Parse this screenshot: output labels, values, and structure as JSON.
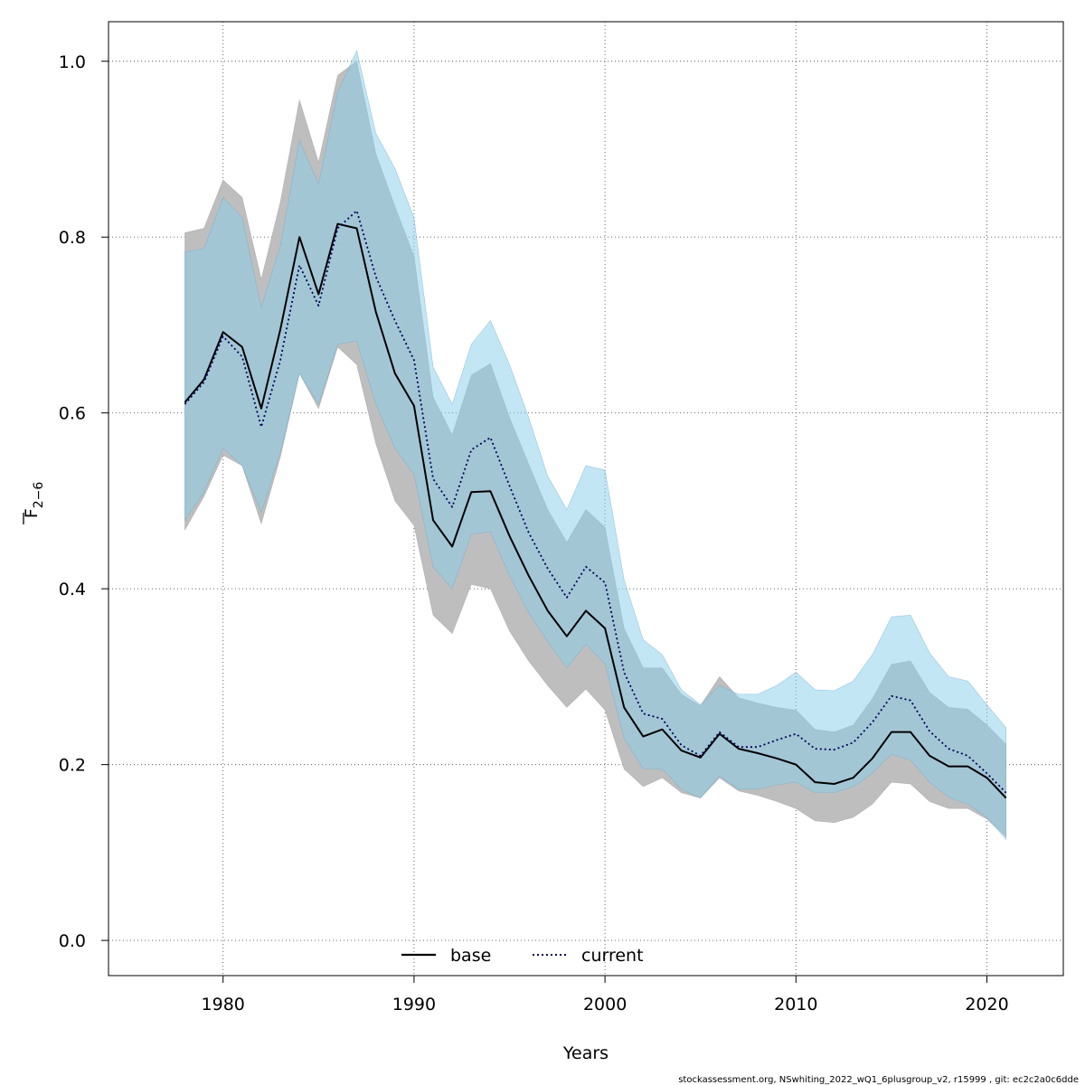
{
  "chart_data": {
    "type": "line",
    "xlabel": "Years",
    "ylabel_main": "F",
    "ylabel_sub": "2−6",
    "xlim": [
      1974,
      2024
    ],
    "ylim": [
      -0.04,
      1.045
    ],
    "xticks": [
      1980,
      1990,
      2000,
      2010,
      2020
    ],
    "yticks": [
      0.0,
      0.2,
      0.4,
      0.6,
      0.8,
      1.0
    ],
    "yticks_text": [
      "0.0",
      "0.2",
      "0.4",
      "0.6",
      "0.8",
      "1.0"
    ],
    "xticks_text": [
      "1980",
      "1990",
      "2000",
      "2010",
      "2020"
    ],
    "grid": true,
    "legend_position": "bottom-center",
    "footer": "stockassessment.org, NSwhiting_2022_wQ1_6plusgroup_v2, r15999 , git: ec2c2a0c6dde",
    "x": [
      1978,
      1979,
      1980,
      1981,
      1982,
      1983,
      1984,
      1985,
      1986,
      1987,
      1988,
      1989,
      1990,
      1991,
      1992,
      1993,
      1994,
      1995,
      1996,
      1997,
      1998,
      1999,
      2000,
      2001,
      2002,
      2003,
      2004,
      2005,
      2006,
      2007,
      2008,
      2009,
      2010,
      2011,
      2012,
      2013,
      2014,
      2015,
      2016,
      2017,
      2018,
      2019,
      2020,
      2021
    ],
    "series": [
      {
        "name": "base",
        "line_color": "#000000",
        "band_color": "#bebebe",
        "dash": "solid",
        "values": [
          0.612,
          0.638,
          0.692,
          0.675,
          0.605,
          0.695,
          0.8,
          0.735,
          0.815,
          0.81,
          0.715,
          0.645,
          0.608,
          0.478,
          0.448,
          0.51,
          0.511,
          0.46,
          0.415,
          0.375,
          0.346,
          0.375,
          0.355,
          0.265,
          0.232,
          0.24,
          0.216,
          0.208,
          0.235,
          0.218,
          0.213,
          0.207,
          0.2,
          0.18,
          0.178,
          0.185,
          0.207,
          0.237,
          0.237,
          0.21,
          0.198,
          0.198,
          0.185,
          0.162
        ],
        "lower": [
          0.467,
          0.505,
          0.552,
          0.54,
          0.474,
          0.55,
          0.645,
          0.605,
          0.675,
          0.655,
          0.565,
          0.5,
          0.472,
          0.37,
          0.349,
          0.405,
          0.4,
          0.352,
          0.318,
          0.29,
          0.265,
          0.286,
          0.262,
          0.195,
          0.175,
          0.185,
          0.168,
          0.162,
          0.185,
          0.17,
          0.165,
          0.158,
          0.15,
          0.136,
          0.134,
          0.14,
          0.155,
          0.18,
          0.178,
          0.158,
          0.15,
          0.15,
          0.138,
          0.118
        ],
        "upper": [
          0.805,
          0.81,
          0.865,
          0.845,
          0.752,
          0.84,
          0.956,
          0.885,
          0.984,
          1.0,
          0.895,
          0.835,
          0.778,
          0.618,
          0.575,
          0.643,
          0.656,
          0.595,
          0.542,
          0.49,
          0.453,
          0.49,
          0.47,
          0.355,
          0.31,
          0.31,
          0.28,
          0.267,
          0.3,
          0.276,
          0.27,
          0.265,
          0.262,
          0.24,
          0.237,
          0.245,
          0.275,
          0.314,
          0.318,
          0.282,
          0.265,
          0.263,
          0.245,
          0.223
        ]
      },
      {
        "name": "current",
        "line_color": "#00005a",
        "band_color": "#87ceeb",
        "dash": "dotted",
        "values": [
          0.61,
          0.635,
          0.687,
          0.664,
          0.584,
          0.66,
          0.768,
          0.722,
          0.81,
          0.83,
          0.755,
          0.705,
          0.66,
          0.525,
          0.493,
          0.558,
          0.572,
          0.517,
          0.464,
          0.423,
          0.39,
          0.425,
          0.407,
          0.305,
          0.258,
          0.252,
          0.222,
          0.21,
          0.237,
          0.22,
          0.22,
          0.228,
          0.235,
          0.218,
          0.217,
          0.225,
          0.248,
          0.278,
          0.273,
          0.238,
          0.218,
          0.21,
          0.19,
          0.168
        ],
        "lower": [
          0.478,
          0.51,
          0.56,
          0.54,
          0.487,
          0.555,
          0.645,
          0.61,
          0.678,
          0.682,
          0.61,
          0.56,
          0.53,
          0.425,
          0.4,
          0.462,
          0.465,
          0.415,
          0.373,
          0.34,
          0.31,
          0.337,
          0.315,
          0.23,
          0.195,
          0.195,
          0.172,
          0.162,
          0.187,
          0.172,
          0.172,
          0.177,
          0.18,
          0.168,
          0.168,
          0.175,
          0.19,
          0.212,
          0.205,
          0.18,
          0.163,
          0.155,
          0.14,
          0.115
        ],
        "upper": [
          0.783,
          0.787,
          0.845,
          0.822,
          0.72,
          0.79,
          0.91,
          0.86,
          0.965,
          1.012,
          0.918,
          0.878,
          0.822,
          0.652,
          0.61,
          0.678,
          0.705,
          0.655,
          0.595,
          0.528,
          0.49,
          0.54,
          0.535,
          0.41,
          0.342,
          0.325,
          0.285,
          0.268,
          0.29,
          0.28,
          0.28,
          0.29,
          0.305,
          0.285,
          0.284,
          0.295,
          0.325,
          0.368,
          0.37,
          0.327,
          0.3,
          0.295,
          0.268,
          0.242
        ]
      }
    ]
  }
}
